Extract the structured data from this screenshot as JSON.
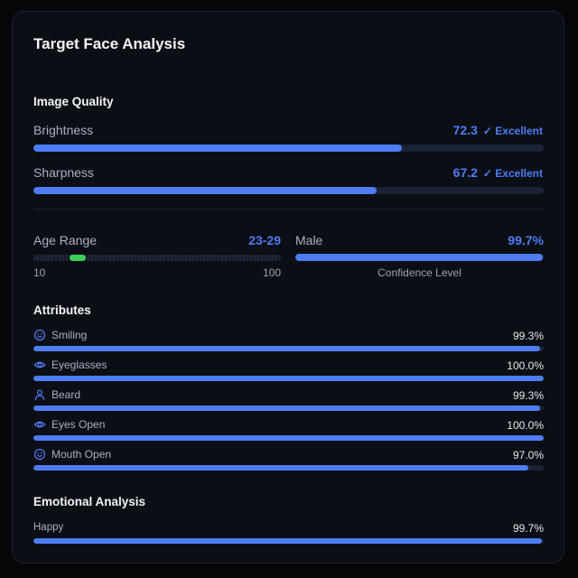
{
  "title": "Target Face Analysis",
  "image_quality": {
    "heading": "Image Quality",
    "metrics": [
      {
        "label": "Brightness",
        "value": "72.3",
        "status": "✓ Excellent",
        "fraction": 0.723
      },
      {
        "label": "Sharpness",
        "value": "67.2",
        "status": "✓ Excellent",
        "fraction": 0.672
      }
    ]
  },
  "age": {
    "label": "Age Range",
    "value": "23-29",
    "min_label": "10",
    "max_label": "100",
    "range_min": 10,
    "range_max": 100,
    "low": 23,
    "high": 29
  },
  "gender": {
    "label": "Male",
    "value": "99.7%",
    "caption": "Confidence Level",
    "fraction": 0.997
  },
  "attributes": {
    "heading": "Attributes",
    "items": [
      {
        "label": "Smiling",
        "value": "99.3%",
        "fraction": 0.993,
        "icon": "smile-icon"
      },
      {
        "label": "Eyeglasses",
        "value": "100.0%",
        "fraction": 1.0,
        "icon": "eye-icon"
      },
      {
        "label": "Beard",
        "value": "99.3%",
        "fraction": 0.993,
        "icon": "user-icon"
      },
      {
        "label": "Eyes Open",
        "value": "100.0%",
        "fraction": 1.0,
        "icon": "eye-icon"
      },
      {
        "label": "Mouth Open",
        "value": "97.0%",
        "fraction": 0.97,
        "icon": "smile-icon"
      }
    ]
  },
  "emotions": {
    "heading": "Emotional Analysis",
    "items": [
      {
        "label": "Happy",
        "value": "99.7%",
        "fraction": 0.997
      }
    ]
  },
  "colors": {
    "accent": "#4d7cf4",
    "age_marker": "#3ecf5a",
    "track": "#1a2236"
  }
}
